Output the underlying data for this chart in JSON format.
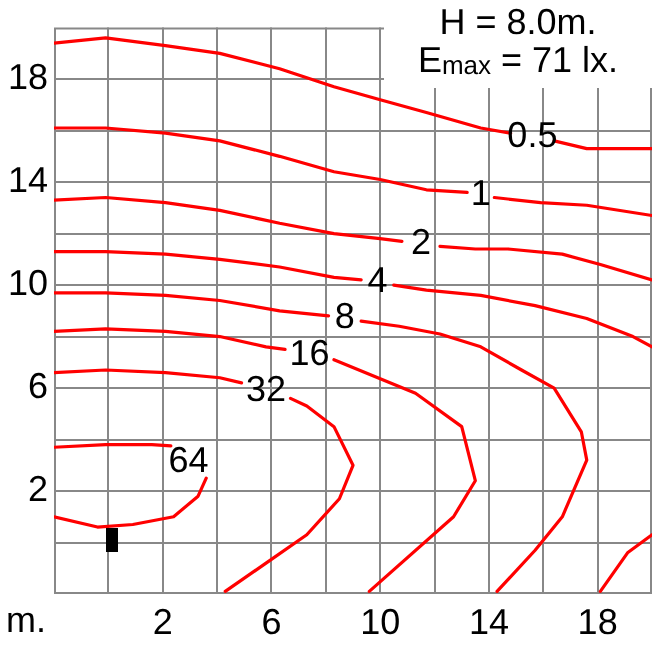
{
  "chart_data": {
    "type": "line",
    "xlabel": "m.",
    "annotations": [
      "H = 8.0m.",
      "E$_{max}$ = 71 lx."
    ],
    "xlim": [
      -2,
      20
    ],
    "ylim": [
      -2,
      20
    ],
    "xticks": [
      {
        "value": 0,
        "label": null
      },
      2,
      {
        "value": 4,
        "label": null
      },
      6,
      {
        "value": 8,
        "label": null
      },
      10,
      {
        "value": 12,
        "label": null
      },
      14,
      {
        "value": 16,
        "label": null
      },
      18
    ],
    "yticks": [
      {
        "value": 0,
        "label": null
      },
      2,
      {
        "value": 4,
        "label": null
      },
      6,
      {
        "value": 8,
        "label": null
      },
      10,
      {
        "value": 12,
        "label": null
      },
      14,
      {
        "value": 16,
        "label": null
      },
      18
    ],
    "grid": true,
    "legend": false,
    "marker": "none",
    "line_style": "solid",
    "series": [
      {
        "name": "0.5",
        "color": "#ff0000",
        "x": [
          -2,
          -0.1,
          2.1,
          4.1,
          6.3,
          8.3,
          10,
          11.7,
          13.7,
          14.8,
          null,
          16.4,
          17.6,
          20
        ],
        "values": [
          19.4,
          19.6,
          19.3,
          19.0,
          18.4,
          17.7,
          17.2,
          16.7,
          16.1,
          15.9,
          null,
          15.6,
          15.3,
          15.3
        ]
      },
      {
        "name": "1",
        "color": "#ff0000",
        "x": [
          -2,
          -0.1,
          2.1,
          4.1,
          6.3,
          8.3,
          10,
          11.7,
          13.2,
          null,
          14.2,
          15.9,
          17.6,
          20
        ],
        "values": [
          16.1,
          16.1,
          15.9,
          15.6,
          15.0,
          14.4,
          14.1,
          13.7,
          13.6,
          null,
          13.4,
          13.2,
          13.1,
          12.7
        ]
      },
      {
        "name": "2",
        "color": "#ff0000",
        "x": [
          -2,
          -0.1,
          2.1,
          4.1,
          6.3,
          8.3,
          10,
          10.8,
          null,
          12.2,
          13.5,
          14.7,
          16.7,
          18.1,
          20
        ],
        "values": [
          13.3,
          13.4,
          13.2,
          12.9,
          12.4,
          12.0,
          11.8,
          11.7,
          null,
          11.5,
          11.4,
          11.4,
          11.2,
          10.8,
          10.2
        ]
      },
      {
        "name": "4",
        "color": "#ff0000",
        "x": [
          -2,
          -0.1,
          2.1,
          4.1,
          6.3,
          8.3,
          9.3,
          null,
          10.5,
          11.7,
          13.7,
          15.7,
          17.6,
          19.3,
          20,
          null,
          18.1,
          19.1,
          20
        ],
        "values": [
          11.3,
          11.3,
          11.2,
          11.0,
          10.7,
          10.3,
          10.2,
          null,
          10.0,
          9.8,
          9.6,
          9.2,
          8.7,
          8.0,
          7.6,
          null,
          -1.9,
          -0.4,
          0.3
        ]
      },
      {
        "name": "8",
        "color": "#ff0000",
        "x": [
          -2,
          -0.1,
          2.1,
          4.1,
          6.3,
          8.1,
          null,
          9.3,
          10.7,
          12.2,
          13.7,
          15.2,
          16.4,
          17.4,
          17.6,
          16.7,
          15.7,
          14.3
        ],
        "values": [
          9.7,
          9.7,
          9.6,
          9.4,
          9.0,
          8.8,
          null,
          8.6,
          8.4,
          8.1,
          7.6,
          6.7,
          6.0,
          4.3,
          3.2,
          1.0,
          -0.3,
          -1.9
        ]
      },
      {
        "name": "16",
        "color": "#ff0000",
        "x": [
          -2,
          -0.1,
          2.1,
          4.1,
          5.8,
          6.5,
          null,
          8.3,
          11.3,
          13,
          13.5,
          12.7,
          9.6
        ],
        "values": [
          8.2,
          8.3,
          8.2,
          8.0,
          7.6,
          7.5,
          null,
          7.1,
          5.8,
          4.5,
          2.4,
          1.0,
          -1.9
        ]
      },
      {
        "name": "32",
        "color": "#ff0000",
        "x": [
          -2,
          -0.1,
          2.1,
          4.1,
          4.9,
          null,
          6.7,
          7.3,
          8.3,
          9.0,
          8.5,
          7.3,
          5.8,
          4.3
        ],
        "values": [
          6.6,
          6.7,
          6.6,
          6.4,
          6.2,
          null,
          5.6,
          5.3,
          4.5,
          3.0,
          1.7,
          0.3,
          -0.8,
          -1.9
        ]
      },
      {
        "name": "64",
        "color": "#ff0000",
        "x": [
          -2,
          -0.1,
          1.6,
          2.3,
          null,
          3.6,
          3.3,
          2.4,
          0.9,
          -0.4,
          -2
        ],
        "values": [
          3.7,
          3.8,
          3.8,
          3.75,
          null,
          2.5,
          1.8,
          1.0,
          0.7,
          0.6,
          1.0
        ]
      }
    ]
  }
}
